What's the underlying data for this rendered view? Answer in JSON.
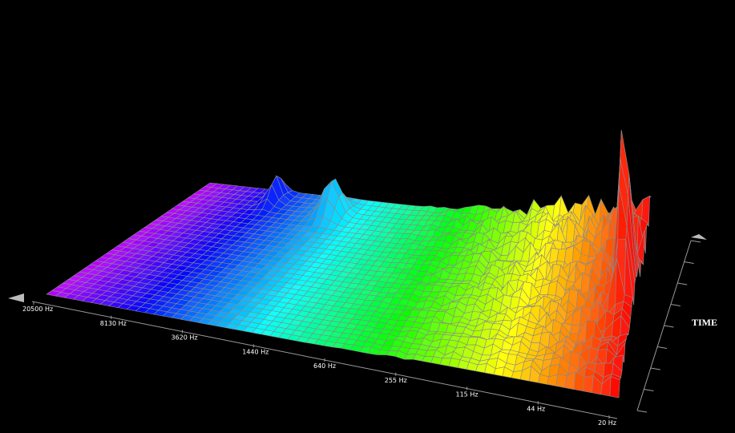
{
  "frequency_axis": {
    "labels": [
      "20500 Hz",
      "8130 Hz",
      "3620 Hz",
      "1440 Hz",
      "640 Hz",
      "255 Hz",
      "115 Hz",
      "44 Hz",
      "20 Hz"
    ]
  },
  "time_axis": {
    "label": "TIME"
  }
}
